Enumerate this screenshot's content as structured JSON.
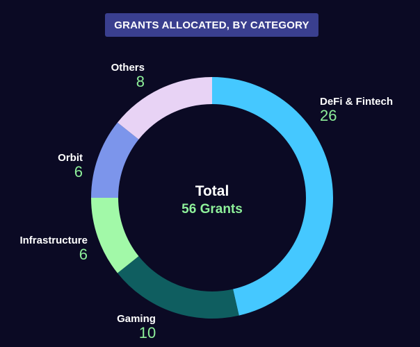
{
  "colors": {
    "background": "#0b0a24",
    "banner": "#3a3f8f",
    "label_text": "#ffffff",
    "value_text": "#8ef09a",
    "center_value": "#8ef09a"
  },
  "chart_data": {
    "type": "pie",
    "title": "GRANTS ALLOCATED, BY CATEGORY",
    "style": "donut",
    "center": {
      "label": "Total",
      "value_text": "56 Grants"
    },
    "slices": [
      {
        "label": "DeFi & Fintech",
        "value": 26,
        "color": "#45c8ff"
      },
      {
        "label": "Gaming",
        "value": 10,
        "color": "#0f5e60"
      },
      {
        "label": "Infrastructure",
        "value": 6,
        "color": "#a2f9a8"
      },
      {
        "label": "Orbit",
        "value": 6,
        "color": "#7c95eb"
      },
      {
        "label": "Others",
        "value": 8,
        "color": "#e8d3f5"
      }
    ]
  }
}
